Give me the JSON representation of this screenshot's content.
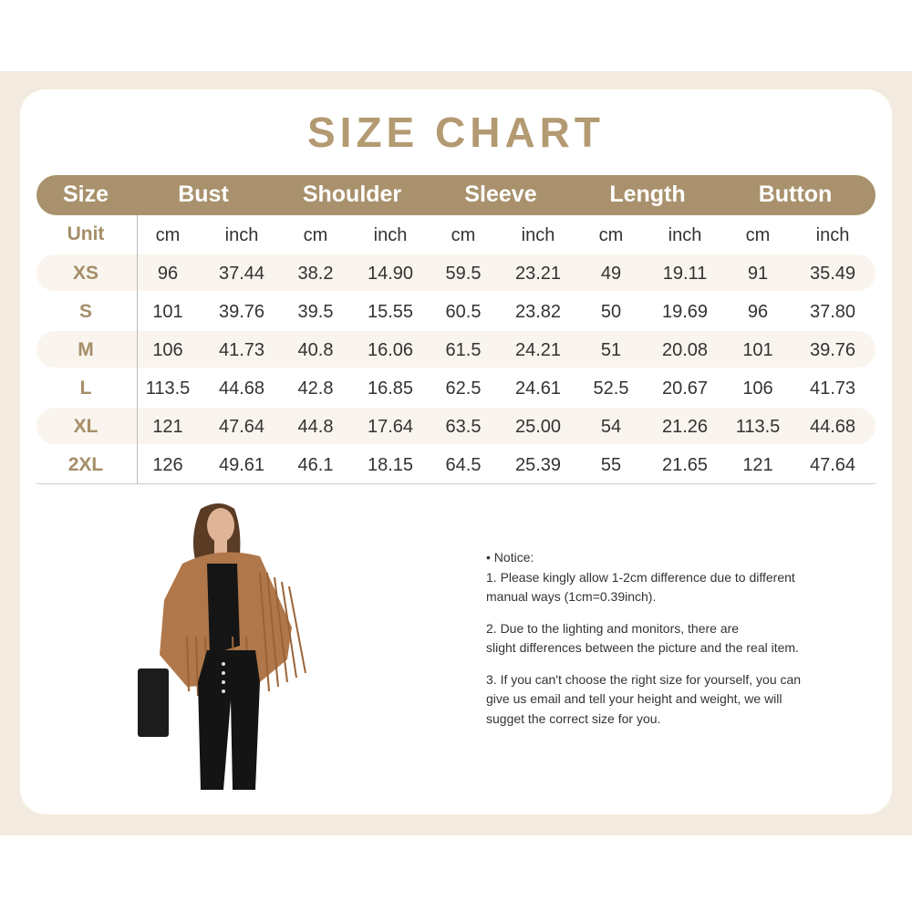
{
  "title": "SIZE CHART",
  "colors": {
    "accent": "#a8916c",
    "title": "#b39a72",
    "band": "#f3ebdf",
    "row_alt": "#f9f4ed"
  },
  "table": {
    "headers": [
      "Size",
      "Bust",
      "Shoulder",
      "Sleeve",
      "Length",
      "Button"
    ],
    "unit_label": "Unit",
    "units": [
      "cm",
      "inch",
      "cm",
      "inch",
      "cm",
      "inch",
      "cm",
      "inch",
      "cm",
      "inch"
    ],
    "rows": [
      {
        "size": "XS",
        "values": [
          "96",
          "37.44",
          "38.2",
          "14.90",
          "59.5",
          "23.21",
          "49",
          "19.11",
          "91",
          "35.49"
        ]
      },
      {
        "size": "S",
        "values": [
          "101",
          "39.76",
          "39.5",
          "15.55",
          "60.5",
          "23.82",
          "50",
          "19.69",
          "96",
          "37.80"
        ]
      },
      {
        "size": "M",
        "values": [
          "106",
          "41.73",
          "40.8",
          "16.06",
          "61.5",
          "24.21",
          "51",
          "20.08",
          "101",
          "39.76"
        ]
      },
      {
        "size": "L",
        "values": [
          "113.5",
          "44.68",
          "42.8",
          "16.85",
          "62.5",
          "24.61",
          "52.5",
          "20.67",
          "106",
          "41.73"
        ]
      },
      {
        "size": "XL",
        "values": [
          "121",
          "47.64",
          "44.8",
          "17.64",
          "63.5",
          "25.00",
          "54",
          "21.26",
          "113.5",
          "44.68"
        ]
      },
      {
        "size": "2XL",
        "values": [
          "126",
          "49.61",
          "46.1",
          "18.15",
          "64.5",
          "25.39",
          "55",
          "21.65",
          "121",
          "47.64"
        ]
      }
    ]
  },
  "notice": {
    "heading": "• Notice:",
    "items": [
      [
        "1. Please kingly allow 1-2cm difference due to different",
        "manual ways (1cm=0.39inch)."
      ],
      [
        "2. Due to the lighting and monitors, there are",
        "slight differences between the picture and the real item."
      ],
      [
        "3. If you can't choose the right size for yourself, you can",
        "give us email and tell your height and weight, we will",
        "sugget the correct size for you."
      ]
    ]
  }
}
